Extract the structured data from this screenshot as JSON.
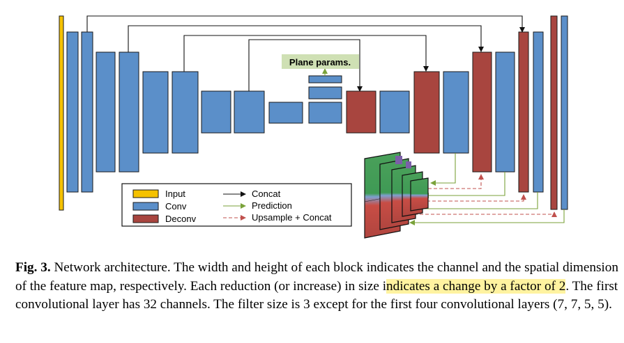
{
  "figure": {
    "plane_label": "Plane params.",
    "legend": {
      "input": "Input",
      "conv": "Conv",
      "deconv": "Deconv",
      "concat": "Concat",
      "prediction": "Prediction",
      "upsample": "Upsample + Concat"
    },
    "colors": {
      "input": "#f5c200",
      "conv": "#5b8fc9",
      "deconv": "#a8453f",
      "prediction": "#7aa23a",
      "upsample": "#c0504d",
      "plane_label_bg": "#cfe0b4"
    }
  },
  "caption": {
    "label": "Fig. 3.",
    "text_a": " Network architecture. The width and height of each block indicates the channel and the spatial dimension of the feature map, respectively. Each reduction (or increase) in size i",
    "highlight": "ndicates a change by a factor of 2",
    "text_b": ". The first convolutional layer has 32 channels. The filter size is 3 except for the first four convolutional layers (7, 7, 5, 5)."
  }
}
